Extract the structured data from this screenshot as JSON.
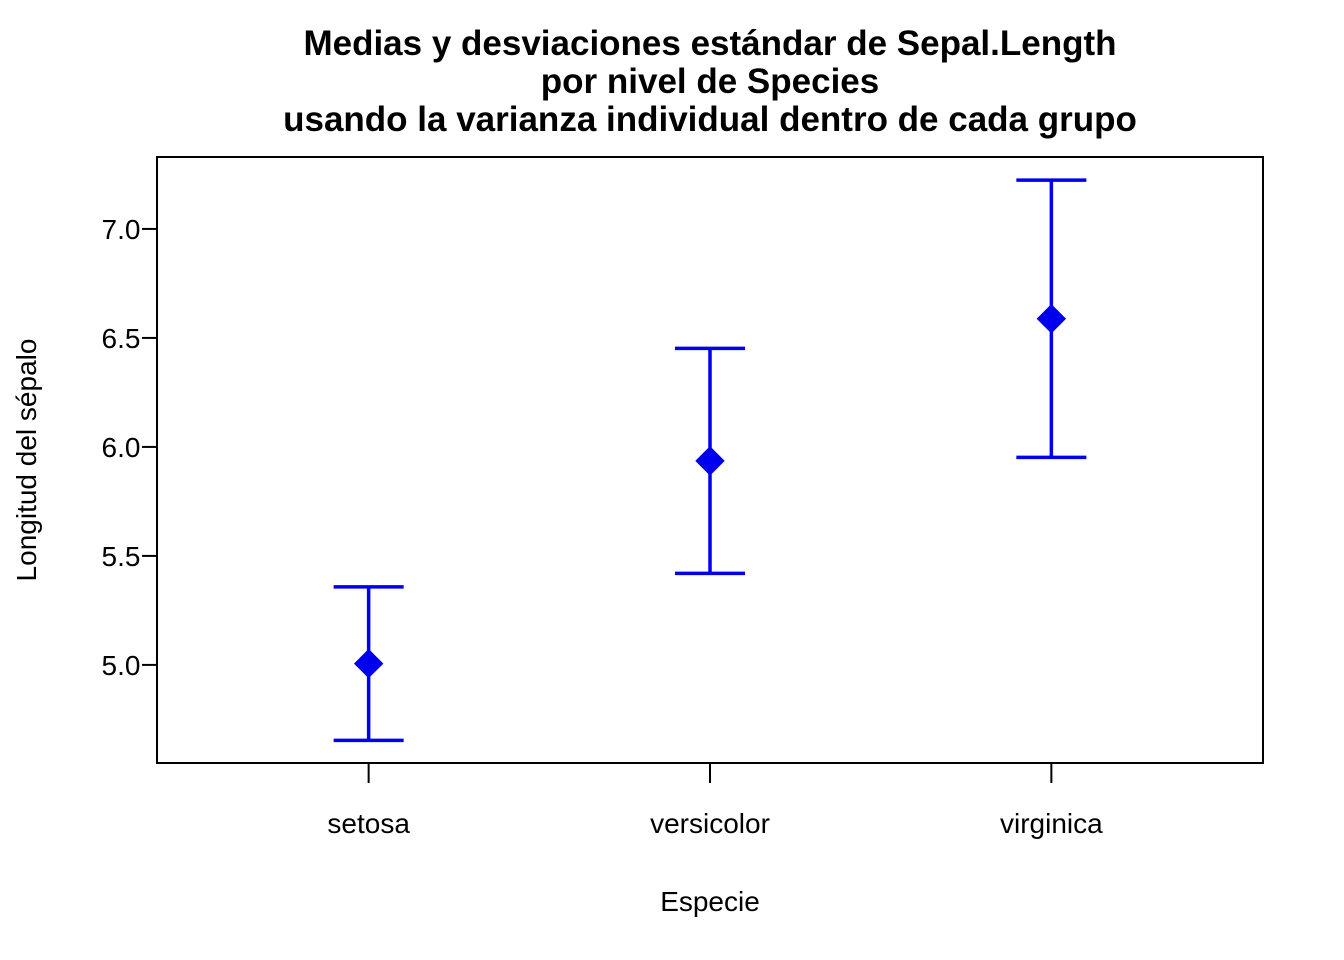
{
  "chart_data": {
    "type": "scatter",
    "title_lines": [
      "Medias y desviaciones estándar de Sepal.Length",
      "por nivel de Species",
      "usando la varianza individual dentro de cada grupo"
    ],
    "xlabel": "Especie",
    "ylabel": "Longitud del sépalo",
    "categories": [
      "setosa",
      "versicolor",
      "virginica"
    ],
    "means": [
      5.006,
      5.936,
      6.588
    ],
    "sd": [
      0.352,
      0.516,
      0.636
    ],
    "ylim": [
      4.55,
      7.33
    ],
    "yticks": [
      5.0,
      5.5,
      6.0,
      6.5,
      7.0
    ],
    "ytick_labels": [
      "5.0",
      "5.5",
      "6.0",
      "6.5",
      "7.0"
    ],
    "grid": false,
    "marker": "diamond",
    "color": "#0000ee"
  }
}
